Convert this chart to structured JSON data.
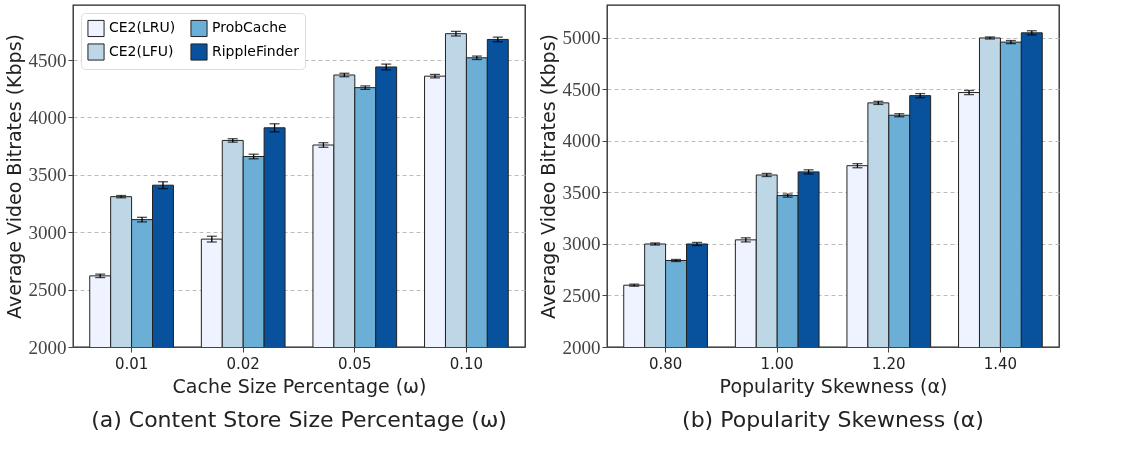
{
  "chart_data": [
    {
      "type": "bar",
      "title": "(a) Content Store Size Percentage (ω)",
      "xlabel": "Cache Size Percentage (ω)",
      "ylabel": "Average Video Bitrates (Kbps)",
      "categories": [
        "0.01",
        "0.02",
        "0.05",
        "0.10"
      ],
      "series": [
        {
          "name": "CE2(LRU)",
          "color": "#eff3ff",
          "values": [
            2620,
            2940,
            3760,
            4360
          ],
          "errors": [
            15,
            25,
            20,
            15
          ]
        },
        {
          "name": "CE2(LFU)",
          "color": "#bdd7e7",
          "values": [
            3310,
            3800,
            4370,
            4730
          ],
          "errors": [
            10,
            15,
            15,
            20
          ]
        },
        {
          "name": "ProbCache",
          "color": "#6baed6",
          "values": [
            3110,
            3660,
            4260,
            4520
          ],
          "errors": [
            20,
            20,
            15,
            15
          ]
        },
        {
          "name": "RippleFinder",
          "color": "#08519c",
          "values": [
            3410,
            3910,
            4440,
            4680
          ],
          "errors": [
            30,
            35,
            25,
            20
          ]
        }
      ],
      "ylim": [
        2000,
        4980
      ],
      "yticks": [
        2000,
        2500,
        3000,
        3500,
        4000,
        4500
      ],
      "grid": "y",
      "legend": "top left"
    },
    {
      "type": "bar",
      "title": "(b) Popularity Skewness (α)",
      "xlabel": "Popularity Skewness (α)",
      "ylabel": "Average Video Bitrates (Kbps)",
      "categories": [
        "0.80",
        "1.00",
        "1.20",
        "1.40"
      ],
      "series": [
        {
          "name": "CE2(LRU)",
          "color": "#eff3ff",
          "values": [
            2600,
            3040,
            3760,
            4470
          ],
          "errors": [
            10,
            20,
            20,
            20
          ]
        },
        {
          "name": "CE2(LFU)",
          "color": "#bdd7e7",
          "values": [
            3000,
            3670,
            4370,
            5000
          ],
          "errors": [
            10,
            15,
            15,
            10
          ]
        },
        {
          "name": "ProbCache",
          "color": "#6baed6",
          "values": [
            2840,
            3470,
            4250,
            4960
          ],
          "errors": [
            10,
            15,
            15,
            15
          ]
        },
        {
          "name": "RippleFinder",
          "color": "#08519c",
          "values": [
            3000,
            3700,
            4440,
            5050
          ],
          "errors": [
            15,
            20,
            20,
            20
          ]
        }
      ],
      "ylim": [
        2000,
        5320
      ],
      "yticks": [
        2000,
        2500,
        3000,
        3500,
        4000,
        4500,
        5000
      ],
      "grid": "y",
      "legend": "top left"
    }
  ]
}
